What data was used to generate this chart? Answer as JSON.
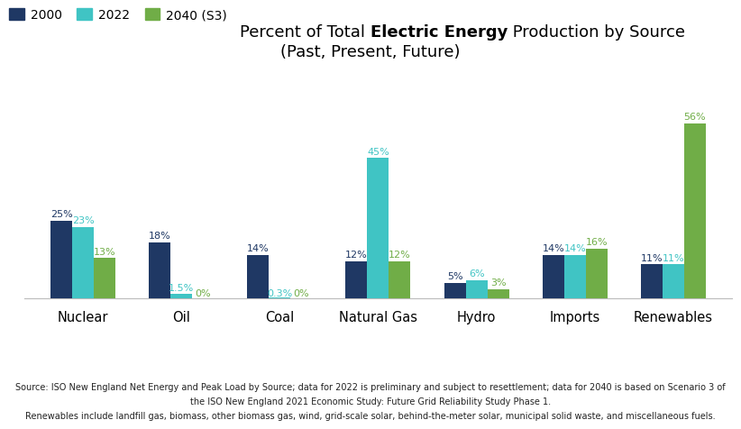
{
  "categories": [
    "Nuclear",
    "Oil",
    "Coal",
    "Natural Gas",
    "Hydro",
    "Imports",
    "Renewables"
  ],
  "series": {
    "2000": [
      25,
      18,
      14,
      12,
      5,
      14,
      11
    ],
    "2022": [
      23,
      1.5,
      0.3,
      45,
      6,
      14,
      11
    ],
    "2040 (S3)": [
      13,
      0,
      0,
      12,
      3,
      16,
      56
    ]
  },
  "labels": {
    "2000": [
      "25%",
      "18%",
      "14%",
      "12%",
      "5%",
      "14%",
      "11%"
    ],
    "2022": [
      "23%",
      "1.5%",
      "0.3%",
      "45%",
      "6%",
      "14%",
      "11%"
    ],
    "2040 (S3)": [
      "13%",
      "0%",
      "0%",
      "12%",
      "3%",
      "16%",
      "56%"
    ]
  },
  "colors": {
    "2000": "#1f3864",
    "2022": "#40c4c4",
    "2040 (S3)": "#70ad47"
  },
  "legend_labels": [
    "2000",
    "2022",
    "2040 (S3)"
  ],
  "ylim": [
    0,
    60
  ],
  "bar_width": 0.22,
  "background_color": "#ffffff",
  "title_line1_pre": "Percent of Total ",
  "title_line1_bold": "Electric Energy",
  "title_line1_post": " Production by Source",
  "title_line2": "(Past, Present, Future)",
  "title_fontsize": 13,
  "legend_fontsize": 10,
  "xlabel_fontsize": 10.5,
  "label_fontsize": 8,
  "footer1": "Source: ISO New England Net Energy and Peak Load by Source; data for 2022 is preliminary and subject to resettlement; data for 2040 is based on Scenario 3 of",
  "footer2": "the ISO New England 2021 Economic Study: Future Grid Reliability Study Phase 1.",
  "footer3": "Renewables include landfill gas, biomass, other biomass gas, wind, grid-scale solar, behind-the-meter solar, municipal solid waste, and miscellaneous fuels.",
  "footer_fontsize": 7.0
}
